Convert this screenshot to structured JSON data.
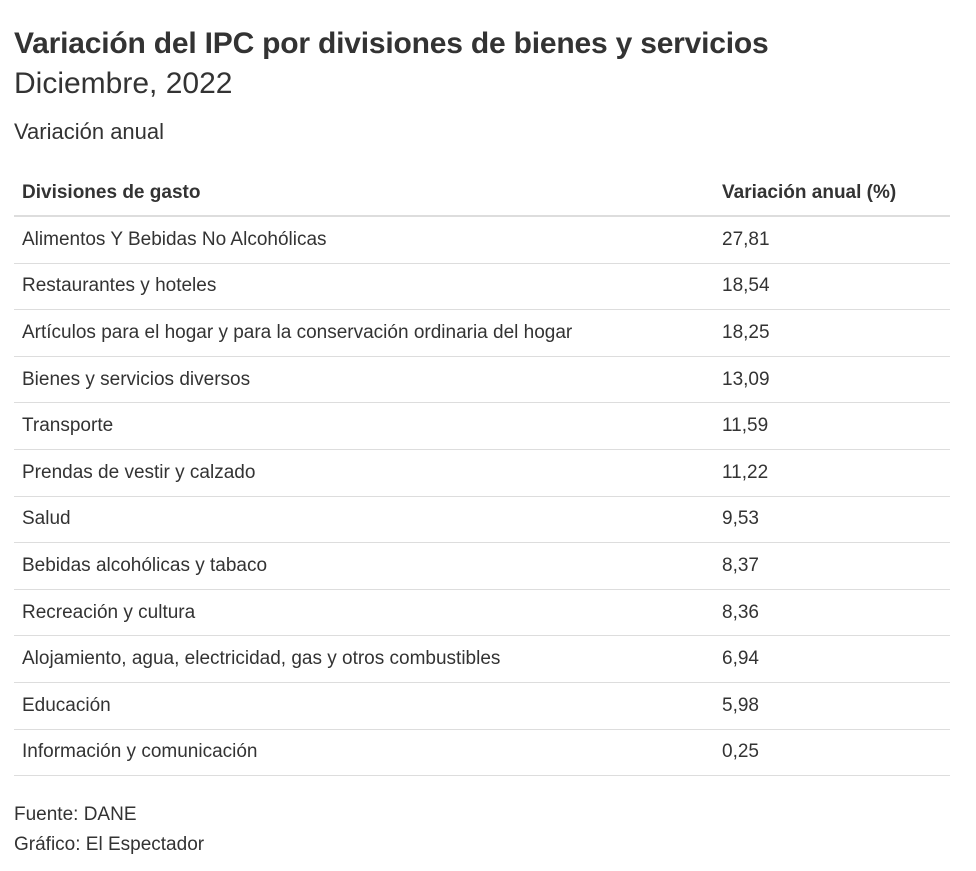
{
  "header": {
    "title": "Variación del IPC por divisiones de bienes y servicios",
    "subtitle": "Diciembre, 2022",
    "description": "Variación anual"
  },
  "chart_data": {
    "type": "table",
    "columns": [
      "Divisiones de gasto",
      "Variación anual (%)"
    ],
    "rows": [
      [
        "Alimentos Y Bebidas No Alcohólicas",
        "27,81"
      ],
      [
        "Restaurantes y hoteles",
        "18,54"
      ],
      [
        "Artículos para el hogar y para la conservación ordinaria del hogar",
        "18,25"
      ],
      [
        "Bienes y servicios diversos",
        "13,09"
      ],
      [
        "Transporte",
        "11,59"
      ],
      [
        "Prendas de vestir y calzado",
        "11,22"
      ],
      [
        "Salud",
        "9,53"
      ],
      [
        "Bebidas alcohólicas y tabaco",
        "8,37"
      ],
      [
        "Recreación y cultura",
        "8,36"
      ],
      [
        "Alojamiento, agua, electricidad, gas y otros combustibles",
        "6,94"
      ],
      [
        "Educación",
        "5,98"
      ],
      [
        "Información y comunicación",
        "0,25"
      ]
    ]
  },
  "footer": {
    "source": "Fuente: DANE",
    "credit": "Gráfico: El Espectador"
  }
}
